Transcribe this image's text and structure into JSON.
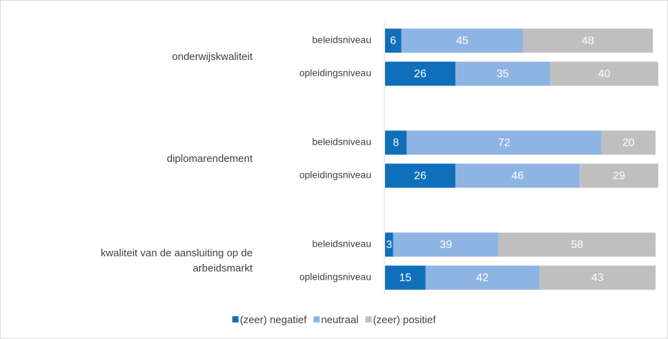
{
  "chart_data": {
    "type": "stacked-bar-horizontal",
    "groups": [
      "onderwijskwaliteit",
      "diplomarendement",
      "kwaliteit van de aansluiting op de arbeidsmarkt"
    ],
    "categories": [
      "beleidsniveau",
      "opleidingsniveau",
      "beleidsniveau",
      "opleidingsniveau",
      "beleidsniveau",
      "opleidingsniveau"
    ],
    "series": [
      {
        "name": "(zeer) negatief",
        "color": "#0f6fba",
        "values": [
          6,
          26,
          8,
          26,
          3,
          15
        ]
      },
      {
        "name": "neutraal",
        "color": "#8eb4e3",
        "values": [
          45,
          35,
          72,
          46,
          39,
          42
        ]
      },
      {
        "name": "(zeer) positief",
        "color": "#bfbfbf",
        "values": [
          48,
          40,
          20,
          29,
          58,
          43
        ]
      }
    ],
    "xlim": [
      0,
      100
    ],
    "legend": "bottom"
  }
}
